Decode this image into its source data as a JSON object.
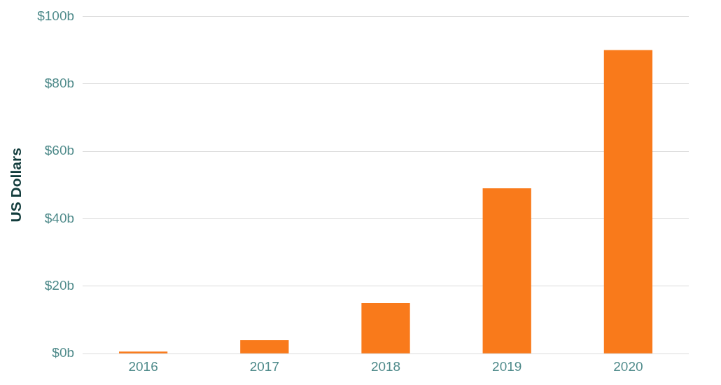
{
  "chart_data": {
    "type": "bar",
    "ylabel": "US Dollars",
    "categories": [
      "2016",
      "2017",
      "2018",
      "2019",
      "2020"
    ],
    "values": [
      0.6,
      4,
      15,
      49,
      90
    ],
    "color": "#f97a1b",
    "ylim": [
      0,
      100
    ],
    "yticks": [
      {
        "value": 0,
        "label": "$0b"
      },
      {
        "value": 20,
        "label": "$20b"
      },
      {
        "value": 40,
        "label": "$40b"
      },
      {
        "value": 60,
        "label": "$60b"
      },
      {
        "value": 80,
        "label": "$80b"
      },
      {
        "value": 100,
        "label": "$100b"
      }
    ],
    "grid": "y",
    "legend": false
  }
}
